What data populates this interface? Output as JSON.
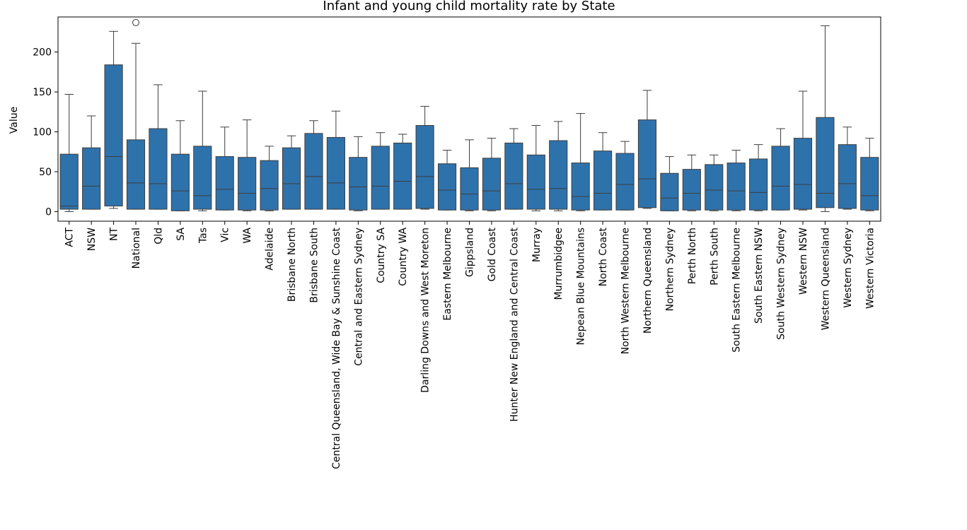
{
  "chart_data": {
    "type": "boxplot",
    "title": "Infant and young child mortality rate by State",
    "xlabel": "",
    "ylabel": "Value",
    "ylim": [
      -12,
      244
    ],
    "yticks": [
      0,
      50,
      100,
      150,
      200
    ],
    "grid": false,
    "color": "#2e72ac",
    "categories": [
      "ACT",
      "NSW",
      "NT",
      "National",
      "Qld",
      "SA",
      "Tas",
      "Vic",
      "WA",
      "Adelaide",
      "Brisbane North",
      "Brisbane South",
      "Central Queensland, Wide Bay & Sunshine Coast",
      "Central and Eastern Sydney",
      "Country SA",
      "Country WA",
      "Darling Downs and West Moreton",
      "Eastern Melbourne",
      "Gippsland",
      "Gold Coast",
      "Hunter New England and Central Coast",
      "Murray",
      "Murrumbidgee",
      "Nepean Blue Mountains",
      "North Coast",
      "North Western Melbourne",
      "Northern Queensland",
      "Northern Sydney",
      "Perth North",
      "Perth South",
      "South Eastern Melbourne",
      "South Eastern NSW",
      "South Western Sydney",
      "Western NSW",
      "Western Queensland",
      "Western Sydney",
      "Western Victoria"
    ],
    "boxes": [
      {
        "whisker_low": 0,
        "q1": 3,
        "median": 7,
        "q3": 72,
        "whisker_high": 147,
        "outliers": []
      },
      {
        "whisker_low": 3,
        "q1": 3,
        "median": 32,
        "q3": 80,
        "whisker_high": 120,
        "outliers": []
      },
      {
        "whisker_low": 4,
        "q1": 7,
        "median": 69,
        "q3": 184,
        "whisker_high": 226,
        "outliers": []
      },
      {
        "whisker_low": 3,
        "q1": 3,
        "median": 36,
        "q3": 90,
        "whisker_high": 211,
        "outliers": [
          237
        ]
      },
      {
        "whisker_low": 3,
        "q1": 3,
        "median": 35,
        "q3": 104,
        "whisker_high": 159,
        "outliers": []
      },
      {
        "whisker_low": 1,
        "q1": 1,
        "median": 26,
        "q3": 72,
        "whisker_high": 114,
        "outliers": []
      },
      {
        "whisker_low": 1,
        "q1": 3,
        "median": 20,
        "q3": 82,
        "whisker_high": 151,
        "outliers": []
      },
      {
        "whisker_low": 2,
        "q1": 2,
        "median": 28,
        "q3": 69,
        "whisker_high": 106,
        "outliers": []
      },
      {
        "whisker_low": 1,
        "q1": 2,
        "median": 23,
        "q3": 68,
        "whisker_high": 115,
        "outliers": []
      },
      {
        "whisker_low": 1,
        "q1": 2,
        "median": 29,
        "q3": 64,
        "whisker_high": 82,
        "outliers": []
      },
      {
        "whisker_low": 3,
        "q1": 3,
        "median": 35,
        "q3": 80,
        "whisker_high": 95,
        "outliers": []
      },
      {
        "whisker_low": 3,
        "q1": 3,
        "median": 44,
        "q3": 98,
        "whisker_high": 114,
        "outliers": []
      },
      {
        "whisker_low": 3,
        "q1": 3,
        "median": 36,
        "q3": 93,
        "whisker_high": 126,
        "outliers": []
      },
      {
        "whisker_low": 1,
        "q1": 2,
        "median": 31,
        "q3": 68,
        "whisker_high": 94,
        "outliers": []
      },
      {
        "whisker_low": 3,
        "q1": 3,
        "median": 32,
        "q3": 82,
        "whisker_high": 99,
        "outliers": []
      },
      {
        "whisker_low": 3,
        "q1": 3,
        "median": 38,
        "q3": 86,
        "whisker_high": 97,
        "outliers": []
      },
      {
        "whisker_low": 3,
        "q1": 4,
        "median": 44,
        "q3": 108,
        "whisker_high": 132,
        "outliers": []
      },
      {
        "whisker_low": 2,
        "q1": 2,
        "median": 27,
        "q3": 60,
        "whisker_high": 77,
        "outliers": []
      },
      {
        "whisker_low": 1,
        "q1": 2,
        "median": 22,
        "q3": 55,
        "whisker_high": 90,
        "outliers": []
      },
      {
        "whisker_low": 1,
        "q1": 2,
        "median": 26,
        "q3": 67,
        "whisker_high": 92,
        "outliers": []
      },
      {
        "whisker_low": 3,
        "q1": 3,
        "median": 35,
        "q3": 86,
        "whisker_high": 104,
        "outliers": []
      },
      {
        "whisker_low": 1,
        "q1": 3,
        "median": 28,
        "q3": 71,
        "whisker_high": 108,
        "outliers": []
      },
      {
        "whisker_low": 1,
        "q1": 3,
        "median": 29,
        "q3": 89,
        "whisker_high": 113,
        "outliers": []
      },
      {
        "whisker_low": 1,
        "q1": 2,
        "median": 19,
        "q3": 61,
        "whisker_high": 123,
        "outliers": []
      },
      {
        "whisker_low": 2,
        "q1": 2,
        "median": 23,
        "q3": 76,
        "whisker_high": 99,
        "outliers": []
      },
      {
        "whisker_low": 2,
        "q1": 2,
        "median": 34,
        "q3": 73,
        "whisker_high": 88,
        "outliers": []
      },
      {
        "whisker_low": 4,
        "q1": 5,
        "median": 41,
        "q3": 115,
        "whisker_high": 152,
        "outliers": []
      },
      {
        "whisker_low": 1,
        "q1": 1,
        "median": 17,
        "q3": 48,
        "whisker_high": 69,
        "outliers": []
      },
      {
        "whisker_low": 1,
        "q1": 2,
        "median": 23,
        "q3": 53,
        "whisker_high": 71,
        "outliers": []
      },
      {
        "whisker_low": 1,
        "q1": 2,
        "median": 27,
        "q3": 59,
        "whisker_high": 71,
        "outliers": []
      },
      {
        "whisker_low": 1,
        "q1": 2,
        "median": 26,
        "q3": 61,
        "whisker_high": 77,
        "outliers": []
      },
      {
        "whisker_low": 1,
        "q1": 2,
        "median": 24,
        "q3": 66,
        "whisker_high": 84,
        "outliers": []
      },
      {
        "whisker_low": 2,
        "q1": 2,
        "median": 32,
        "q3": 82,
        "whisker_high": 104,
        "outliers": []
      },
      {
        "whisker_low": 2,
        "q1": 3,
        "median": 34,
        "q3": 92,
        "whisker_high": 151,
        "outliers": []
      },
      {
        "whisker_low": 0,
        "q1": 5,
        "median": 23,
        "q3": 118,
        "whisker_high": 233,
        "outliers": []
      },
      {
        "whisker_low": 3,
        "q1": 4,
        "median": 35,
        "q3": 84,
        "whisker_high": 106,
        "outliers": []
      },
      {
        "whisker_low": 1,
        "q1": 2,
        "median": 20,
        "q3": 68,
        "whisker_high": 92,
        "outliers": []
      }
    ]
  }
}
